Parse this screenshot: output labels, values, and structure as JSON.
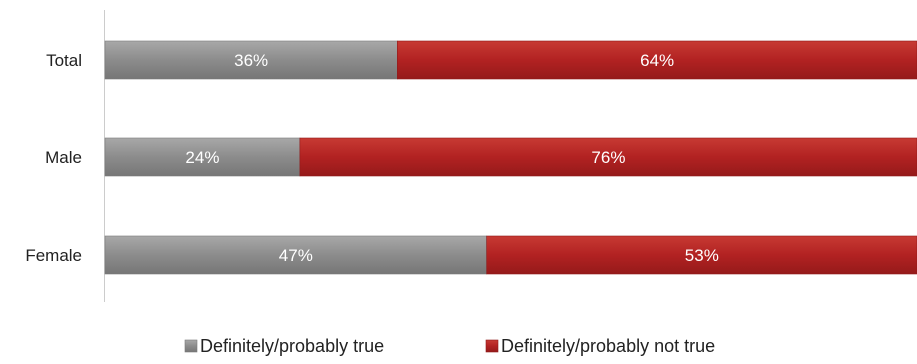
{
  "chart_data": {
    "type": "bar",
    "orientation": "horizontal",
    "stacked": true,
    "percent_stacked": true,
    "categories": [
      "Total",
      "Male",
      "Female"
    ],
    "series": [
      {
        "name": "Definitely/probably true",
        "values": [
          36,
          24,
          47
        ],
        "labels": [
          "36%",
          "24%",
          "47%"
        ],
        "color": "#8c8c8c"
      },
      {
        "name": "Definitely/probably not true",
        "values": [
          64,
          76,
          53
        ],
        "labels": [
          "64%",
          "76%",
          "53%"
        ],
        "color": "#b22222"
      }
    ],
    "xlim": [
      0,
      100
    ],
    "grid": false,
    "legend": "bottom"
  }
}
